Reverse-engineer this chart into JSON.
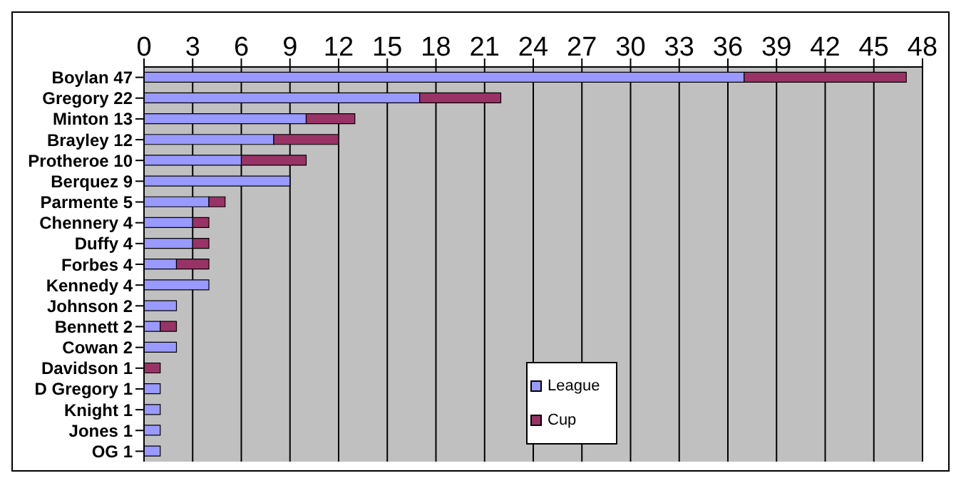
{
  "chart_data": {
    "type": "bar",
    "orientation": "horizontal",
    "stacked": true,
    "categories": [
      "Boylan 47",
      "Gregory 22",
      "Minton 13",
      "Brayley 12",
      "Protheroe 10",
      "Berquez 9",
      "Parmente 5",
      "Chennery 4",
      "Duffy 4",
      "Forbes 4",
      "Kennedy 4",
      "Johnson 2",
      "Bennett 2",
      "Cowan 2",
      "Davidson 1",
      "D Gregory 1",
      "Knight 1",
      "Jones 1",
      "OG 1"
    ],
    "series": [
      {
        "name": "League",
        "color": "#9999ff",
        "values": [
          37,
          17,
          10,
          8,
          6,
          9,
          4,
          3,
          3,
          2,
          4,
          2,
          1,
          2,
          0,
          1,
          1,
          1,
          1
        ]
      },
      {
        "name": "Cup",
        "color": "#993366",
        "values": [
          10,
          5,
          3,
          4,
          4,
          0,
          1,
          1,
          1,
          2,
          0,
          0,
          1,
          0,
          1,
          0,
          0,
          0,
          0
        ]
      }
    ],
    "xlim": [
      0,
      48
    ],
    "xticks": [
      0,
      3,
      6,
      9,
      12,
      15,
      18,
      21,
      24,
      27,
      30,
      33,
      36,
      39,
      42,
      45,
      48
    ],
    "grid": "x",
    "legend": "bottom"
  }
}
